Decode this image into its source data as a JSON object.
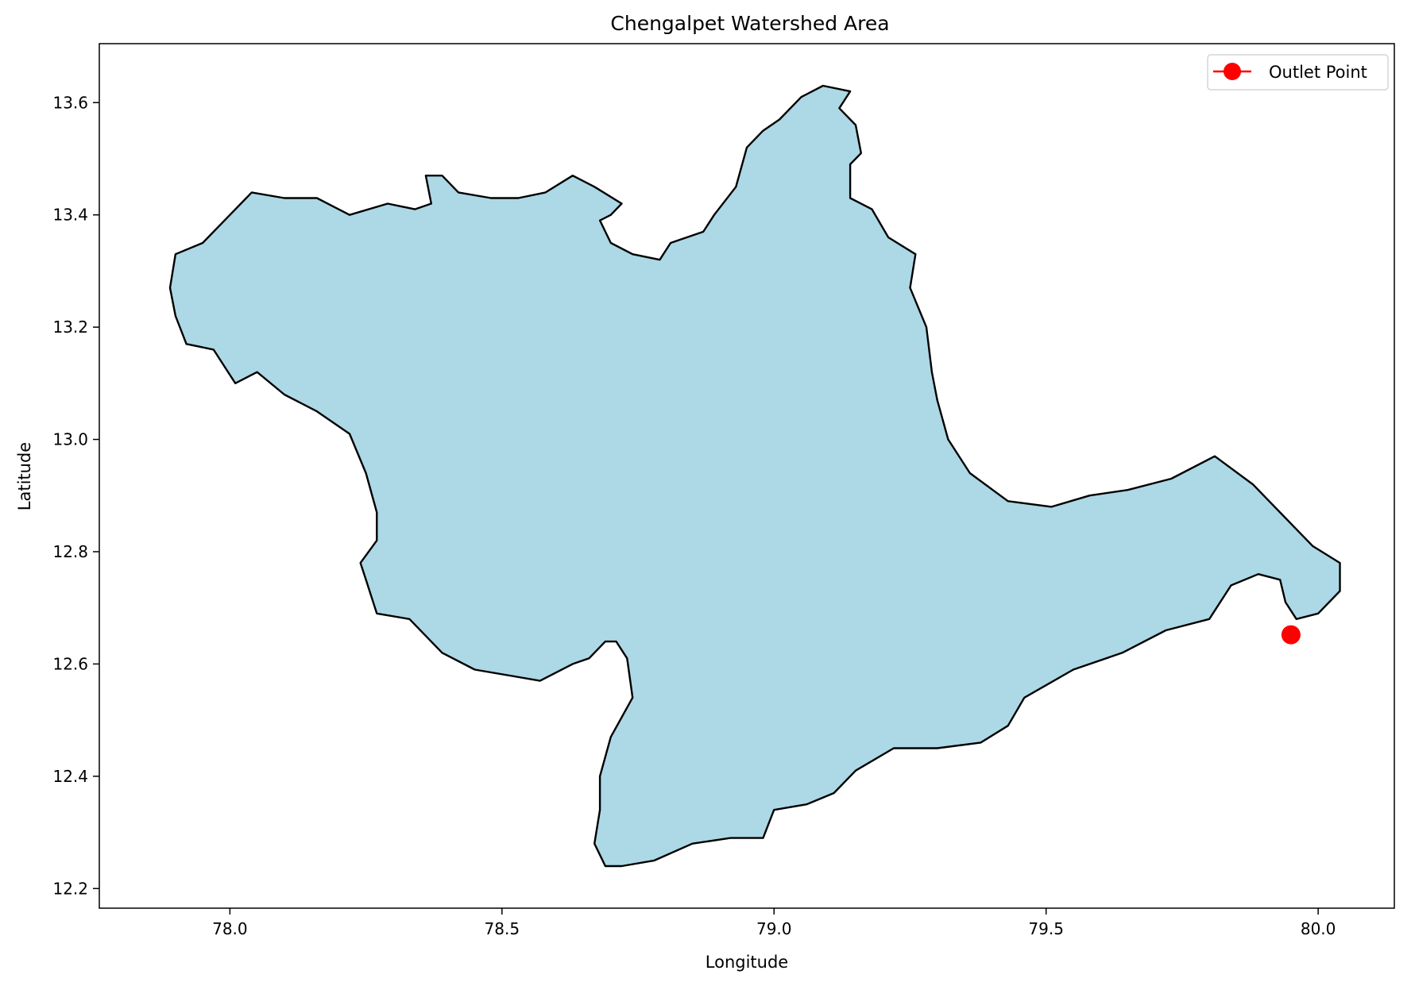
{
  "chart_data": {
    "type": "map",
    "title": "Chengalpet Watershed Area",
    "xlabel": "Longitude",
    "ylabel": "Latitude",
    "xlim": [
      77.76,
      80.14
    ],
    "ylim": [
      12.165,
      13.705
    ],
    "xticks": [
      78.0,
      78.5,
      79.0,
      79.5,
      80.0
    ],
    "xtick_labels": [
      "78.0",
      "78.5",
      "79.0",
      "79.5",
      "80.0"
    ],
    "yticks": [
      12.2,
      12.4,
      12.6,
      12.8,
      13.0,
      13.2,
      13.4,
      13.6
    ],
    "ytick_labels": [
      "12.2",
      "12.4",
      "12.6",
      "12.8",
      "13.0",
      "13.2",
      "13.4",
      "13.6"
    ],
    "grid": false,
    "legend_position": "top-right",
    "legend": [
      {
        "label": "Outlet Point",
        "color": "#ff0000",
        "marker": "circle"
      }
    ],
    "outlet_point": {
      "name": "Outlet Point",
      "x": 79.95,
      "y": 12.652,
      "color": "#ff0000"
    },
    "watershed": {
      "fill_color": "#add8e6",
      "edge_color": "#000000",
      "boundary": [
        [
          77.9,
          13.33
        ],
        [
          77.95,
          13.35
        ],
        [
          78.0,
          13.4
        ],
        [
          78.04,
          13.44
        ],
        [
          78.1,
          13.43
        ],
        [
          78.16,
          13.43
        ],
        [
          78.22,
          13.4
        ],
        [
          78.29,
          13.42
        ],
        [
          78.34,
          13.41
        ],
        [
          78.37,
          13.42
        ],
        [
          78.36,
          13.47
        ],
        [
          78.39,
          13.47
        ],
        [
          78.42,
          13.44
        ],
        [
          78.48,
          13.43
        ],
        [
          78.53,
          13.43
        ],
        [
          78.58,
          13.44
        ],
        [
          78.63,
          13.47
        ],
        [
          78.67,
          13.45
        ],
        [
          78.72,
          13.42
        ],
        [
          78.7,
          13.4
        ],
        [
          78.68,
          13.39
        ],
        [
          78.7,
          13.35
        ],
        [
          78.74,
          13.33
        ],
        [
          78.79,
          13.32
        ],
        [
          78.81,
          13.35
        ],
        [
          78.87,
          13.37
        ],
        [
          78.89,
          13.4
        ],
        [
          78.93,
          13.45
        ],
        [
          78.95,
          13.52
        ],
        [
          78.98,
          13.55
        ],
        [
          79.01,
          13.57
        ],
        [
          79.05,
          13.61
        ],
        [
          79.09,
          13.63
        ],
        [
          79.14,
          13.62
        ],
        [
          79.12,
          13.59
        ],
        [
          79.15,
          13.56
        ],
        [
          79.16,
          13.51
        ],
        [
          79.14,
          13.49
        ],
        [
          79.14,
          13.43
        ],
        [
          79.18,
          13.41
        ],
        [
          79.21,
          13.36
        ],
        [
          79.26,
          13.33
        ],
        [
          79.25,
          13.27
        ],
        [
          79.28,
          13.2
        ],
        [
          79.29,
          13.12
        ],
        [
          79.3,
          13.07
        ],
        [
          79.32,
          13.0
        ],
        [
          79.36,
          12.94
        ],
        [
          79.43,
          12.89
        ],
        [
          79.51,
          12.88
        ],
        [
          79.58,
          12.9
        ],
        [
          79.65,
          12.91
        ],
        [
          79.73,
          12.93
        ],
        [
          79.81,
          12.97
        ],
        [
          79.88,
          12.92
        ],
        [
          79.93,
          12.87
        ],
        [
          79.96,
          12.84
        ],
        [
          79.99,
          12.81
        ],
        [
          80.04,
          12.78
        ],
        [
          80.04,
          12.73
        ],
        [
          80.0,
          12.69
        ],
        [
          79.96,
          12.68
        ],
        [
          79.94,
          12.71
        ],
        [
          79.93,
          12.75
        ],
        [
          79.89,
          12.76
        ],
        [
          79.84,
          12.74
        ],
        [
          79.8,
          12.68
        ],
        [
          79.72,
          12.66
        ],
        [
          79.64,
          12.62
        ],
        [
          79.55,
          12.59
        ],
        [
          79.46,
          12.54
        ],
        [
          79.43,
          12.49
        ],
        [
          79.38,
          12.46
        ],
        [
          79.3,
          12.45
        ],
        [
          79.22,
          12.45
        ],
        [
          79.15,
          12.41
        ],
        [
          79.11,
          12.37
        ],
        [
          79.06,
          12.35
        ],
        [
          79.0,
          12.34
        ],
        [
          78.98,
          12.29
        ],
        [
          78.92,
          12.29
        ],
        [
          78.85,
          12.28
        ],
        [
          78.78,
          12.25
        ],
        [
          78.72,
          12.24
        ],
        [
          78.69,
          12.24
        ],
        [
          78.67,
          12.28
        ],
        [
          78.68,
          12.34
        ],
        [
          78.68,
          12.4
        ],
        [
          78.7,
          12.47
        ],
        [
          78.74,
          12.54
        ],
        [
          78.73,
          12.61
        ],
        [
          78.71,
          12.64
        ],
        [
          78.69,
          12.64
        ],
        [
          78.66,
          12.61
        ],
        [
          78.63,
          12.6
        ],
        [
          78.57,
          12.57
        ],
        [
          78.51,
          12.58
        ],
        [
          78.45,
          12.59
        ],
        [
          78.39,
          12.62
        ],
        [
          78.33,
          12.68
        ],
        [
          78.27,
          12.69
        ],
        [
          78.25,
          12.75
        ],
        [
          78.24,
          12.78
        ],
        [
          78.27,
          12.82
        ],
        [
          78.27,
          12.87
        ],
        [
          78.25,
          12.94
        ],
        [
          78.22,
          13.01
        ],
        [
          78.16,
          13.05
        ],
        [
          78.1,
          13.08
        ],
        [
          78.05,
          13.12
        ],
        [
          78.01,
          13.1
        ],
        [
          77.99,
          13.13
        ],
        [
          77.97,
          13.16
        ],
        [
          77.92,
          13.17
        ],
        [
          77.9,
          13.22
        ],
        [
          77.89,
          13.27
        ]
      ]
    }
  }
}
